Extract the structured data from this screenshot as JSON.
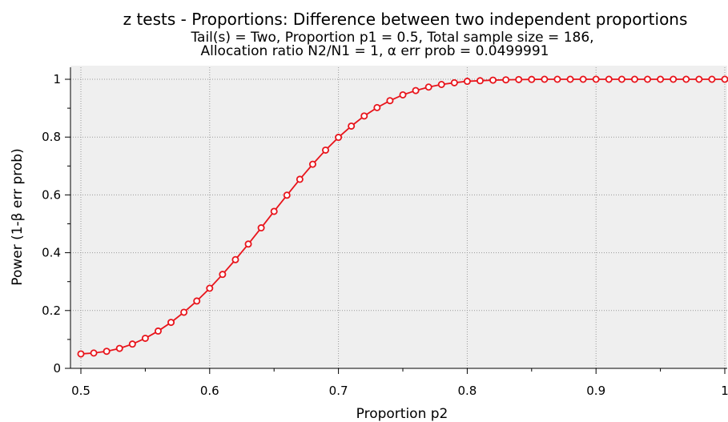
{
  "chart_data": {
    "type": "line",
    "title": "z tests - Proportions: Difference between two independent proportions",
    "subtitle_lines": [
      "Tail(s) = Two, Proportion p1 = 0.5, Total sample size = 186,",
      "Allocation ratio N2/N1 = 1, α err prob = 0.0499991"
    ],
    "xlabel": "Proportion p2",
    "ylabel": "Power (1-β err prob)",
    "xlim": [
      0.5,
      1.0
    ],
    "ylim": [
      0,
      1
    ],
    "x_ticks": [
      0.5,
      0.6,
      0.7,
      0.8,
      0.9,
      1.0
    ],
    "x_tick_labels": [
      "0.5",
      "0.6",
      "0.7",
      "0.8",
      "0.9",
      "1"
    ],
    "y_ticks": [
      0,
      0.2,
      0.4,
      0.6,
      0.8,
      1.0
    ],
    "y_tick_labels": [
      "0",
      "0.2",
      "0.4",
      "0.6",
      "0.8",
      "1"
    ],
    "grid": true,
    "colors": {
      "series": "#e8141b",
      "plot_background": "#efefef",
      "grid": "#9a9a9a"
    },
    "series": [
      {
        "x": [
          0.5,
          0.51,
          0.52,
          0.53,
          0.54,
          0.55,
          0.56,
          0.57,
          0.58,
          0.59,
          0.6,
          0.61,
          0.62,
          0.63,
          0.64,
          0.65,
          0.66,
          0.67,
          0.68,
          0.69,
          0.7,
          0.71,
          0.72,
          0.73,
          0.74,
          0.75,
          0.76,
          0.77,
          0.78,
          0.79,
          0.8,
          0.81,
          0.82,
          0.83,
          0.84,
          0.85,
          0.86,
          0.87,
          0.88,
          0.89,
          0.9,
          0.91,
          0.92,
          0.93,
          0.94,
          0.95,
          0.96,
          0.97,
          0.98,
          0.99,
          1.0
        ],
        "y": [
          0.05,
          0.053,
          0.059,
          0.069,
          0.084,
          0.104,
          0.129,
          0.159,
          0.194,
          0.233,
          0.277,
          0.325,
          0.376,
          0.43,
          0.486,
          0.543,
          0.599,
          0.654,
          0.706,
          0.755,
          0.799,
          0.838,
          0.873,
          0.902,
          0.926,
          0.946,
          0.961,
          0.973,
          0.982,
          0.988,
          0.993,
          0.995,
          0.997,
          0.998,
          0.999,
          0.9995,
          1.0,
          1.0,
          1.0,
          1.0,
          1.0,
          1.0,
          1.0,
          1.0,
          1.0,
          1.0,
          1.0,
          1.0,
          1.0,
          1.0,
          1.0
        ]
      }
    ]
  }
}
